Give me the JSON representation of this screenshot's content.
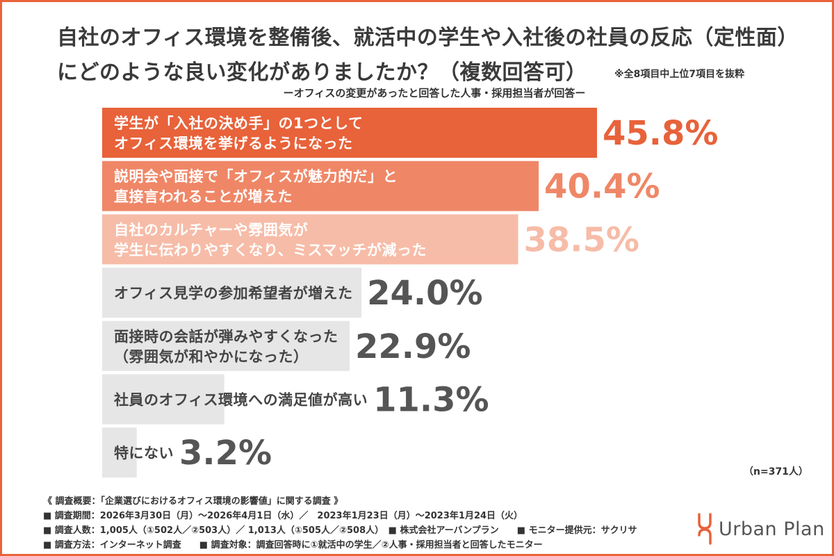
{
  "chart_data": {
    "type": "bar",
    "orientation": "horizontal",
    "title_lines": [
      "自社のオフィス環境を整備後、就活中の学生や入社後の社員の反応（定性面）",
      "にどのような良い変化がありましたか？（複数回答可）"
    ],
    "note": "※全8項目中上位7項目を抜粋",
    "subtitle": "ーオフィスの変更があったと回答した人事・採用担当者が回答ー",
    "categories": [
      [
        "学生が「入社の決め手」の1つとして",
        "オフィス環境を挙げるようになった"
      ],
      [
        "説明会や面接で「オフィスが魅力的だ」と",
        "直接言われることが増えた"
      ],
      [
        "自社のカルチャーや雰囲気が",
        "学生に伝わりやすくなり、ミスマッチが減った"
      ],
      [
        "オフィス見学の参加希望者が増えた"
      ],
      [
        "面接時の会話が弾みやすくなった",
        "（雰囲気が和やかになった）"
      ],
      [
        "社員のオフィス環境への満足値が高い"
      ],
      [
        "特にない"
      ]
    ],
    "values": [
      45.8,
      40.4,
      38.5,
      24.0,
      22.9,
      11.3,
      3.2
    ],
    "value_labels": [
      "45.8%",
      "40.4%",
      "38.5%",
      "24.0%",
      "22.9%",
      "11.3%",
      "3.2%"
    ],
    "bar_colors": [
      "#E8623A",
      "#EF8767",
      "#F6BCA8",
      "#E6E6E6",
      "#E6E6E6",
      "#E6E6E6",
      "#E6E6E6"
    ],
    "value_colors": [
      "#E8623A",
      "#EF8767",
      "#F6BCA8",
      "#555555",
      "#555555",
      "#555555",
      "#555555"
    ],
    "label_colors": [
      "#ffffff",
      "#ffffff",
      "#ffffff",
      "#444444",
      "#444444",
      "#444444",
      "#444444"
    ],
    "n_label": "（n=371人）"
  },
  "footer": {
    "lines": [
      "《 調査概要：「企業選びにおけるオフィス環境の影響値」に関する調査 》",
      "■ 調査期間：2026年3月30日（月）〜2026年4月1日（水）／　2023年1月23日（月）〜2023年1月24日（火）",
      "■ 調査人数：1,005人（①502人／②503人）／ 1,013人（①505人／②508人）　■ 株式会社アーバンプラン　　■ モニター提供元：サクリサ",
      "■ 調査方法：インターネット調査　　■ 調査対象：調査回答時に①就活中の学生／②人事・採用担当者と回答したモニター"
    ]
  },
  "logo": {
    "text": "Urban Plan",
    "color": "#E8623A"
  }
}
